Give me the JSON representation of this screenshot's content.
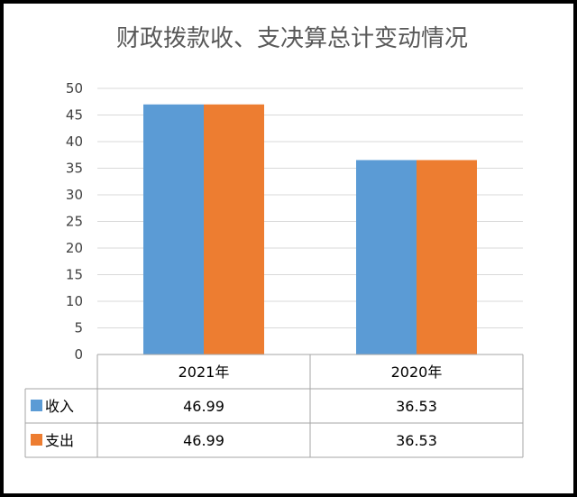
{
  "chart_data": {
    "type": "bar",
    "title": "财政拨款收、支决算总计变动情况",
    "categories": [
      "2021年",
      "2020年"
    ],
    "series": [
      {
        "name": "收入",
        "values": [
          46.99,
          36.53
        ],
        "color": "#5B9BD5"
      },
      {
        "name": "支出",
        "values": [
          46.99,
          36.53
        ],
        "color": "#ED7D31"
      }
    ],
    "value_labels": [
      [
        "46.99",
        "36.53"
      ],
      [
        "46.99",
        "36.53"
      ]
    ],
    "ylim": [
      0,
      50
    ],
    "yticks": [
      0,
      5,
      10,
      15,
      20,
      25,
      30,
      35,
      40,
      45,
      50
    ],
    "grid": true,
    "legend": "data-table"
  },
  "colors": {
    "frame": "#000000",
    "background": "#FFFFFF",
    "gridline": "#D9D9D9",
    "table_border": "#A6A6A6"
  }
}
